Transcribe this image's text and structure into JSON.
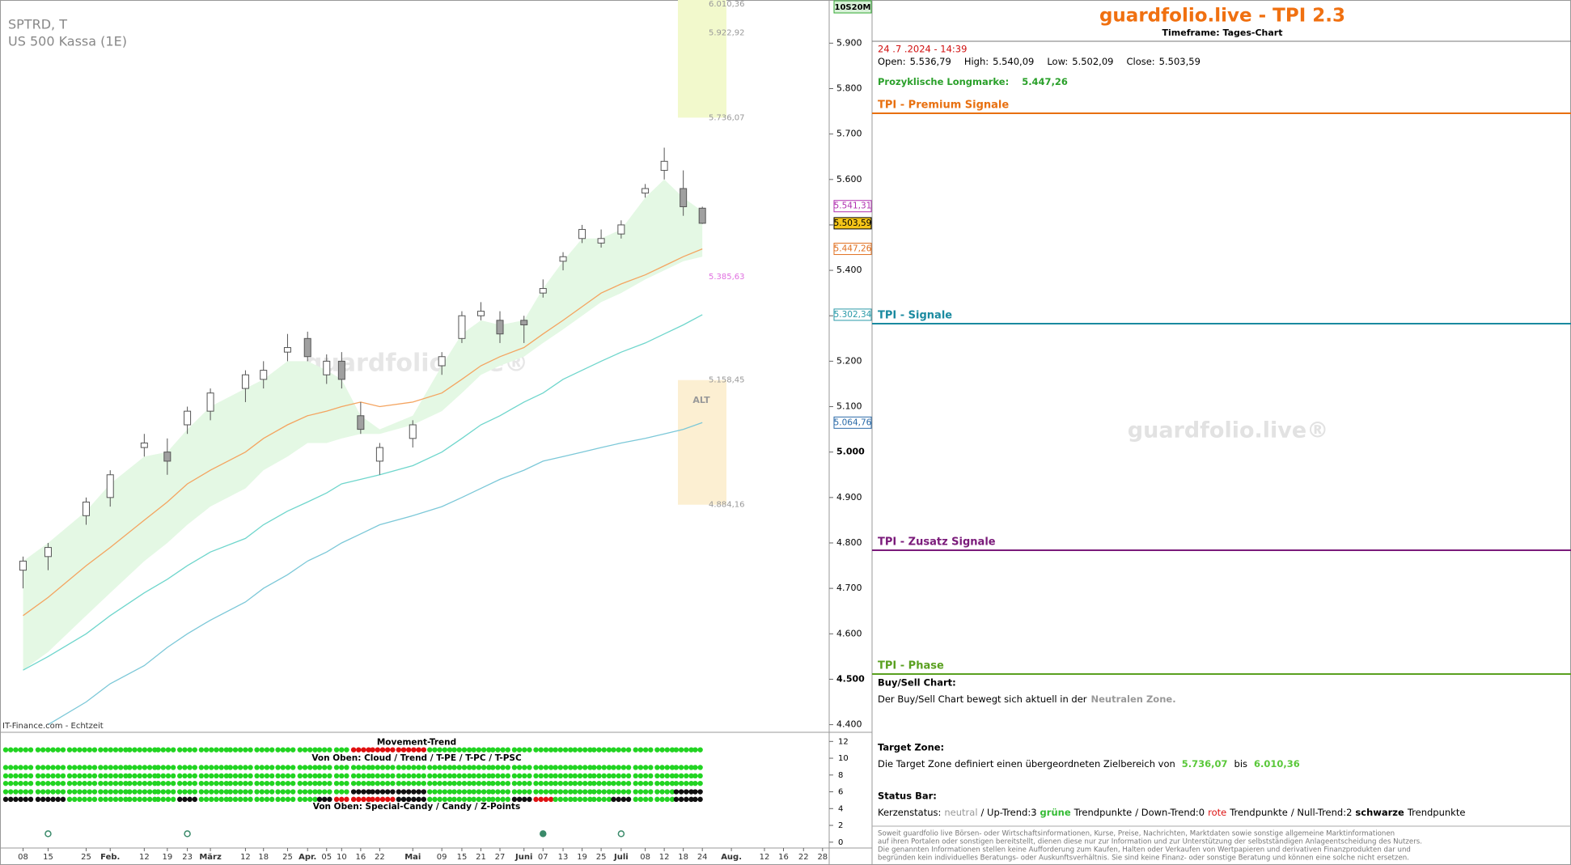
{
  "chart_data": {
    "type": "candlestick",
    "title": "SPTRD, T",
    "subtitle": "US 500 Kassa (1E)",
    "source": "IT-Finance.com - Echtzeit",
    "timeframe": "10S20M",
    "watermark": "guardfolio.live®",
    "zone_label": "ALT",
    "categories": [
      "08",
      "15",
      "25",
      "Feb.",
      "12",
      "19",
      "23",
      "März",
      "12",
      "18",
      "25",
      "Apr.",
      "05",
      "10",
      "16",
      "22",
      "Mai",
      "09",
      "15",
      "21",
      "27",
      "Juni",
      "07",
      "13",
      "19",
      "25",
      "Juli",
      "08",
      "12",
      "18",
      "24",
      "Aug.",
      "12",
      "16",
      "22",
      "28"
    ],
    "open": [
      4740,
      4770,
      4860,
      4900,
      5010,
      5000,
      5060,
      5090,
      5140,
      5160,
      5220,
      5250,
      5170,
      5200,
      5080,
      4980,
      5030,
      5190,
      5250,
      5300,
      5290,
      5290,
      5350,
      5420,
      5470,
      5460,
      5480,
      5570,
      5620,
      5580,
      5536.79,
      null,
      null,
      null,
      null,
      null
    ],
    "high": [
      4770,
      4800,
      4900,
      4960,
      5040,
      5030,
      5100,
      5140,
      5180,
      5200,
      5260,
      5265,
      5215,
      5220,
      5110,
      5020,
      5070,
      5220,
      5310,
      5330,
      5310,
      5300,
      5380,
      5440,
      5500,
      5490,
      5510,
      5590,
      5670,
      5620,
      5540.09,
      null,
      null,
      null,
      null,
      null
    ],
    "low": [
      4700,
      4740,
      4840,
      4880,
      4990,
      4950,
      5040,
      5070,
      5110,
      5140,
      5200,
      5200,
      5150,
      5140,
      5040,
      4950,
      5010,
      5170,
      5240,
      5290,
      5240,
      5240,
      5340,
      5400,
      5460,
      5450,
      5470,
      5560,
      5600,
      5520,
      5502.09,
      null,
      null,
      null,
      null,
      null
    ],
    "close": [
      4760,
      4790,
      4890,
      4950,
      5020,
      4980,
      5090,
      5130,
      5170,
      5180,
      5230,
      5210,
      5200,
      5160,
      5050,
      5010,
      5060,
      5210,
      5300,
      5310,
      5260,
      5280,
      5360,
      5430,
      5490,
      5470,
      5500,
      5580,
      5640,
      5540,
      5503.59,
      null,
      null,
      null,
      null,
      null
    ],
    "candle_colors": {
      "up": "#ffffff",
      "down": "#a0a0a0",
      "stroke": "#555555"
    },
    "lines": [
      {
        "color": "#f4a460",
        "values": [
          4640,
          4680,
          4750,
          4790,
          4850,
          4890,
          4930,
          4960,
          5000,
          5030,
          5060,
          5080,
          5090,
          5100,
          5110,
          5100,
          5110,
          5130,
          5160,
          5190,
          5210,
          5230,
          5260,
          5290,
          5320,
          5350,
          5370,
          5390,
          5410,
          5430,
          5447.26,
          null,
          null,
          null,
          null,
          null
        ]
      },
      {
        "color": "#6fd6cc",
        "values": [
          4520,
          4550,
          4600,
          4640,
          4690,
          4720,
          4750,
          4780,
          4810,
          4840,
          4870,
          4890,
          4910,
          4930,
          4940,
          4950,
          4970,
          5000,
          5030,
          5060,
          5080,
          5110,
          5130,
          5160,
          5180,
          5200,
          5220,
          5240,
          5260,
          5280,
          5302.34,
          null,
          null,
          null,
          null,
          null
        ]
      },
      {
        "color": "#7cc8d8",
        "values": [
          null,
          4400,
          4450,
          4490,
          4530,
          4570,
          4600,
          4630,
          4670,
          4700,
          4730,
          4760,
          4780,
          4800,
          4820,
          4840,
          4860,
          4880,
          4900,
          4920,
          4940,
          4960,
          4980,
          4990,
          5000,
          5010,
          5020,
          5030,
          5040,
          5050,
          5064.76,
          null,
          null,
          null,
          null,
          null
        ]
      }
    ],
    "cloud": {
      "color": "#e4f8e4",
      "upper": [
        4760,
        4800,
        4870,
        4930,
        4990,
        5000,
        5050,
        5100,
        5140,
        5160,
        5200,
        5200,
        5180,
        5160,
        5080,
        5050,
        5080,
        5190,
        5260,
        5290,
        5280,
        5290,
        5360,
        5420,
        5470,
        5470,
        5490,
        5560,
        5600,
        5560,
        5530,
        null,
        null,
        null,
        null,
        null
      ],
      "lower": [
        4520,
        4560,
        4640,
        4690,
        4760,
        4800,
        4840,
        4880,
        4920,
        4960,
        4990,
        5020,
        5020,
        5030,
        5040,
        5040,
        5060,
        5090,
        5130,
        5170,
        5190,
        5210,
        5240,
        5270,
        5300,
        5330,
        5350,
        5380,
        5400,
        5420,
        5430,
        null,
        null,
        null,
        null,
        null
      ]
    },
    "ylim": [
      4385,
      5995
    ],
    "yticks": [
      {
        "value": 4400,
        "label": "4.400"
      },
      {
        "value": 4500,
        "label": "4.500"
      },
      {
        "value": 4600,
        "label": "4.600"
      },
      {
        "value": 4700,
        "label": "4.700"
      },
      {
        "value": 4800,
        "label": "4.800"
      },
      {
        "value": 4900,
        "label": "4.900"
      },
      {
        "value": 5000,
        "label": "5.000"
      },
      {
        "value": 5100,
        "label": "5.100"
      },
      {
        "value": 5200,
        "label": "5.200"
      },
      {
        "value": 5300,
        "label": "5.300"
      },
      {
        "value": 5400,
        "label": "5.400"
      },
      {
        "value": 5500,
        "label": "5.500"
      },
      {
        "value": 5600,
        "label": "5.600"
      },
      {
        "value": 5700,
        "label": "5.700"
      },
      {
        "value": 5800,
        "label": "5.800"
      },
      {
        "value": 5900,
        "label": "5.900"
      }
    ],
    "zones": [
      {
        "color": "#f2f9cc",
        "low": {
          "value": 5736.07,
          "label": "5.736,07"
        },
        "high": {
          "value": 6010.36,
          "label": "6.010,36"
        }
      },
      {
        "color": "#fcefd2",
        "low": {
          "value": 4884.16,
          "label": "4.884,16"
        },
        "high": {
          "value": 5158.45,
          "label": "5.158,45"
        }
      }
    ],
    "levels": [
      {
        "value": 5922.92,
        "label": "5.922,92",
        "color": "#999999"
      },
      {
        "value": 5385.63,
        "label": "5.385,63",
        "color": "#e070e0"
      }
    ],
    "axis_markers": [
      {
        "value": 5541.31,
        "label": "5.541,31",
        "color": "#b030b0",
        "fill": "#ffffff"
      },
      {
        "value": 5503.59,
        "label": "5.503,59",
        "color": "#000000",
        "fill": "#f5c518"
      },
      {
        "value": 5447.26,
        "label": "5.447,26",
        "color": "#e07020",
        "fill": "#ffffff"
      },
      {
        "value": 5302.34,
        "label": "5.302,34",
        "color": "#2a9aa8",
        "fill": "#ffffff"
      },
      {
        "value": 5064.76,
        "label": "5.064,76",
        "color": "#2a6aa8",
        "fill": "#ffffff"
      }
    ],
    "indicator": {
      "titles": [
        "Movement-Trend",
        "Von Oben: Cloud / Trend / T-PE / T-PC / T-PSC",
        "Von Oben: Special-Candy / Candy / Z-Points"
      ],
      "ylim": [
        -0.6,
        12.8
      ],
      "yticks": [
        0,
        2,
        4,
        6,
        8,
        10,
        12
      ],
      "colors": {
        "g": "#22d422",
        "r": "#e01010",
        "k": "#111111",
        "o": "#3a8a6a",
        "f": "#3a8a6a"
      },
      "rows": [
        "ggggggggggggggrrrgggggggggggggg",
        "ggggggggggggggggggggggggggggggg",
        "ggggggggggggggggggggggggggggggg",
        "ggggggggggggggggggggggggggggggg",
        "ggggggggggggggkkkggggggggggggkk",
        "kkggggkgggggkrrrkggggkrgggkggkk",
        ".o....o...............f...o...."
      ]
    }
  },
  "panel": {
    "title": "guardfolio.live - TPI 2.3",
    "timeframe": "Timeframe: Tages-Chart",
    "timestamp": "24 .7 .2024  - 14:39",
    "ohlc": [
      {
        "label": "Open:",
        "value": "5.536,79"
      },
      {
        "label": "High:",
        "value": "5.540,09"
      },
      {
        "label": "Low:",
        "value": "5.502,09"
      },
      {
        "label": "Close:",
        "value": "5.503,59"
      }
    ],
    "longmark": {
      "label": "Prozyklische Longmarke:",
      "value": "5.447,26"
    },
    "sections": [
      {
        "text": "TPI - Premium Signale",
        "color": "#e87010"
      },
      {
        "text": "TPI - Signale",
        "color": "#1a8aa0"
      },
      {
        "text": "TPI - Zusatz Signale",
        "color": "#7a1a7a"
      },
      {
        "text": "TPI - Phase",
        "color": "#5aa020"
      }
    ],
    "watermark": "guardfolio.live®",
    "buysell": {
      "heading": "Buy/Sell Chart:",
      "text": "Der Buy/Sell Chart bewegt sich aktuell in der",
      "zone": "Neutralen Zone."
    },
    "target": {
      "heading": "Target Zone:",
      "text": "Die Target Zone definiert einen übergeordneten Zielbereich von",
      "from": "5.736,07",
      "sep": "bis",
      "to": "6.010,36"
    },
    "status": {
      "heading": "Status Bar:",
      "parts": [
        {
          "text": "Kerzenstatus:",
          "color": "#000000"
        },
        {
          "text": "neutral",
          "color": "#999999"
        },
        {
          "text": "/ Up-Trend:3",
          "color": "#000000"
        },
        {
          "text": "grüne",
          "color": "#33bb33",
          "bold": true
        },
        {
          "text": "Trendpunkte",
          "color": "#000000"
        },
        {
          "text": "/ Down-Trend:0",
          "color": "#000000"
        },
        {
          "text": "rote",
          "color": "#dd1111"
        },
        {
          "text": "Trendpunkte",
          "color": "#000000"
        },
        {
          "text": "/ Null-Trend:2",
          "color": "#000000"
        },
        {
          "text": "schwarze",
          "color": "#000000",
          "bold": true
        },
        {
          "text": "Trendpunkte",
          "color": "#000000"
        }
      ]
    },
    "disclaimer": [
      "Soweit guardfolio live Börsen- oder Wirtschaftsinformationen, Kurse, Preise, Nachrichten, Marktdaten sowie sonstige allgemeine Marktinformationen",
      "auf ihren Portalen oder sonstigen bereitstellt, dienen diese nur zur Information und zur Unterstützung der selbstständigen Anlageentscheidung des Nutzers.",
      "Die genannten Informationen stellen keine Aufforderung zum Kaufen, Halten oder Verkaufen von Wertpapieren und derivativen Finanzprodukten dar und",
      "begründen kein individuelles Beratungs- oder Auskunftsverhältnis. Sie sind keine Finanz- oder sonstige Beratung und können eine solche nicht ersetzen."
    ]
  }
}
